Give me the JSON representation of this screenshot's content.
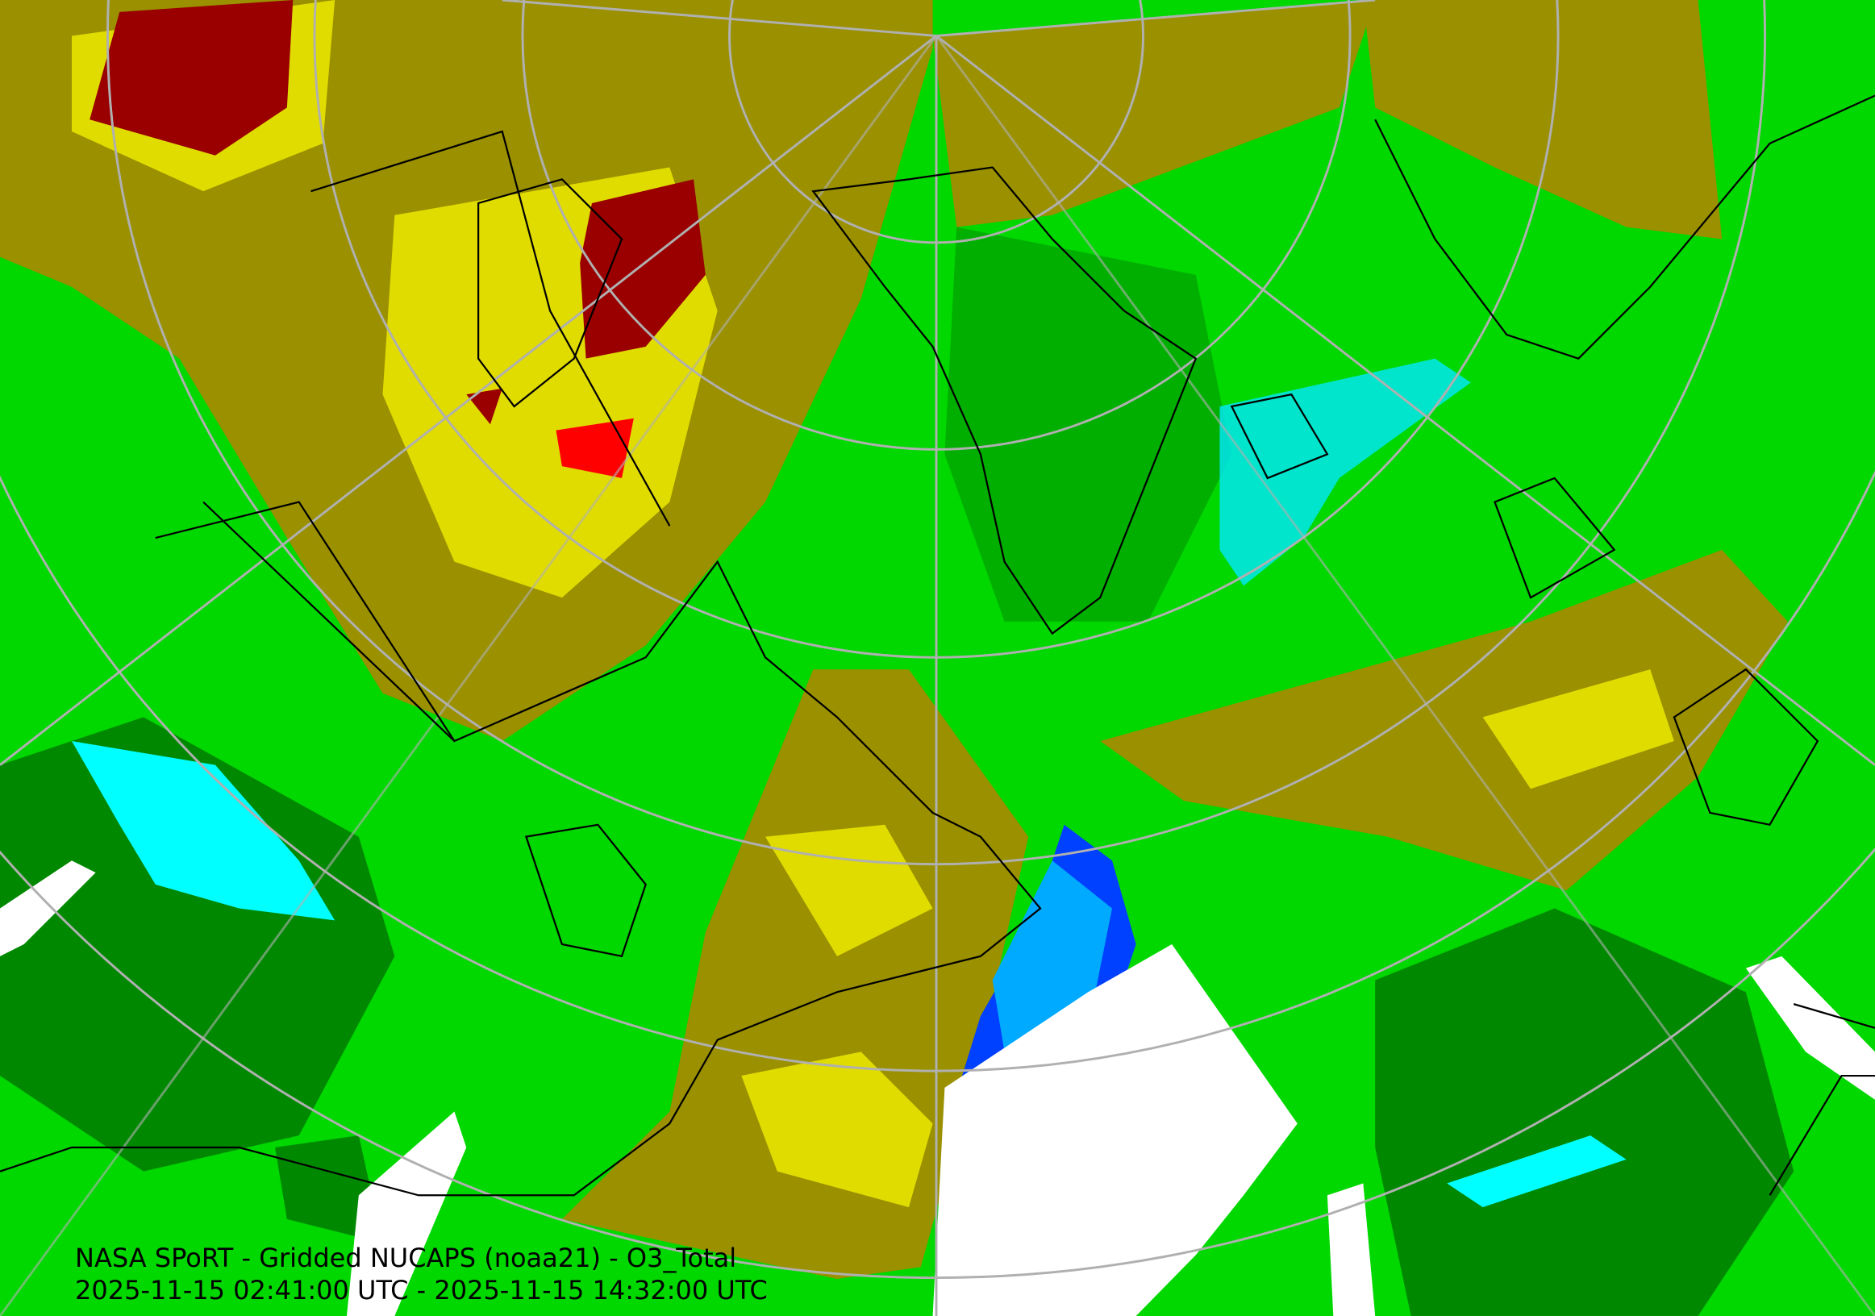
{
  "caption": {
    "title": "NASA SPoRT - Gridded NUCAPS (noaa21) - O3_Total",
    "time_range": "2025-11-15 02:41:00 UTC - 2025-11-15 14:32:00 UTC"
  },
  "map": {
    "projection": "north polar stereographic",
    "field": "O3_Total",
    "colors": {
      "green": "#00d800",
      "bright_green": "#00ff00",
      "dark_green": "#007a00",
      "olive": "#9a9000",
      "yellow": "#e8e800",
      "dark_red": "#9a0000",
      "red": "#ff0000",
      "cyan": "#00ffff",
      "light_blue": "#00aaff",
      "blue": "#0040ff",
      "no_data": "#ffffff",
      "graticule": "#b0b0b0",
      "borders": "#000000"
    }
  }
}
